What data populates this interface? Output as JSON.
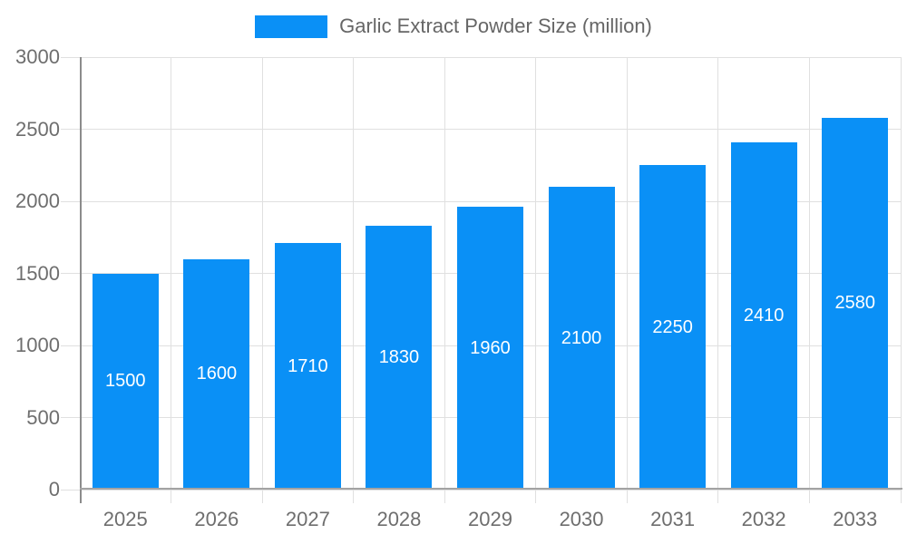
{
  "legend": {
    "label": "Garlic Extract Powder Size (million)",
    "swatch_color": "#0a90f6"
  },
  "chart_data": {
    "type": "bar",
    "title": "Garlic Extract Powder Size (million)",
    "categories": [
      "2025",
      "2026",
      "2027",
      "2028",
      "2029",
      "2030",
      "2031",
      "2032",
      "2033"
    ],
    "values": [
      1500,
      1600,
      1710,
      1830,
      1960,
      2100,
      2250,
      2410,
      2580
    ],
    "xlabel": "",
    "ylabel": "",
    "ylim": [
      0,
      3000
    ],
    "yticks": [
      0,
      500,
      1000,
      1500,
      2000,
      2500,
      3000
    ],
    "grid": true,
    "legend_position": "top-center",
    "bar_color": "#0a90f6",
    "value_label_color": "#ffffff",
    "grid_color": "#e0e0e0",
    "axis_text_color": "#6e6e6e"
  }
}
